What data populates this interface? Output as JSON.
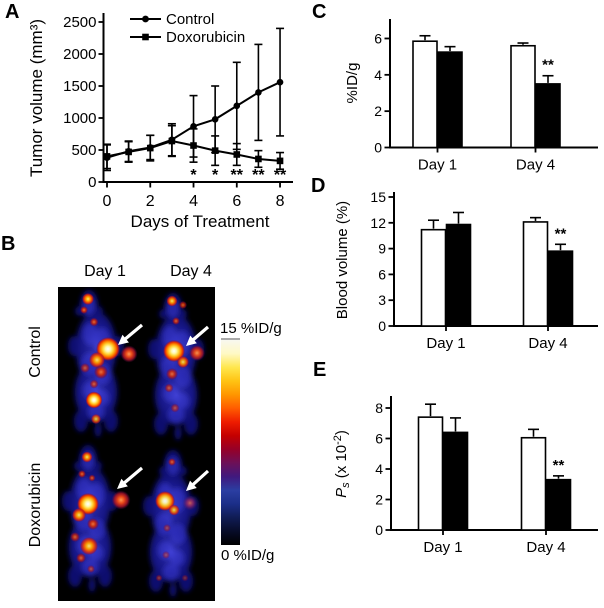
{
  "figure": {
    "background": "#ffffff",
    "text_color": "#000000"
  },
  "panels": {
    "a": {
      "letter": "A"
    },
    "b": {
      "letter": "B",
      "column_labels": [
        "Day 1",
        "Day 4"
      ],
      "row_labels": [
        "Control",
        "Doxorubicin"
      ],
      "colorbar": {
        "max_label": "15 %ID/g",
        "min_label": "0 %ID/g",
        "colors": [
          "#f8f8f0",
          "#fff9c4",
          "#ffe74e",
          "#ffc313",
          "#ff9600",
          "#ff5c00",
          "#ee1c00",
          "#c40000",
          "#960028",
          "#6c1058",
          "#40197e",
          "#2b3ea2",
          "#1b2e88",
          "#101c54",
          "#070c28",
          "#000000"
        ]
      }
    },
    "c": {
      "letter": "C"
    },
    "d": {
      "letter": "D"
    },
    "e": {
      "letter": "E"
    }
  },
  "chart_data": [
    {
      "id": "a",
      "type": "line",
      "title": "",
      "xlabel": "Days of Treatment",
      "ylabel": "Tumor volume (mm³)",
      "x": [
        0,
        1,
        2,
        3,
        4,
        5,
        6,
        7,
        8
      ],
      "xticks": [
        0,
        2,
        4,
        6,
        8
      ],
      "yticks": [
        0,
        500,
        1000,
        1500,
        2000,
        2500
      ],
      "xlim": [
        0,
        8
      ],
      "ylim": [
        0,
        2500
      ],
      "legend_position": "top-inside",
      "series": [
        {
          "name": "Control",
          "marker": "circle",
          "values": [
            380,
            480,
            540,
            660,
            870,
            980,
            1190,
            1400,
            1560
          ],
          "errors": [
            200,
            160,
            190,
            250,
            480,
            520,
            680,
            750,
            840
          ]
        },
        {
          "name": "Doxorubicin",
          "marker": "square",
          "values": [
            400,
            470,
            530,
            640,
            570,
            490,
            430,
            360,
            330
          ],
          "errors": [
            190,
            160,
            200,
            240,
            260,
            230,
            170,
            130,
            130
          ]
        }
      ],
      "annotations": [
        {
          "x": 4,
          "text": "*"
        },
        {
          "x": 5,
          "text": "*"
        },
        {
          "x": 6,
          "text": "**"
        },
        {
          "x": 7,
          "text": "**"
        },
        {
          "x": 8,
          "text": "**"
        }
      ]
    },
    {
      "id": "c",
      "type": "bar",
      "ylabel": "%ID/g",
      "categories": [
        "Day 1",
        "Day 4"
      ],
      "yticks": [
        0,
        2,
        4,
        6
      ],
      "ylim": [
        0,
        6.9
      ],
      "series": [
        {
          "name": "open-bar",
          "fill": "#ffffff",
          "values": [
            5.85,
            5.6
          ],
          "errors": [
            0.3,
            0.15
          ]
        },
        {
          "name": "filled-bar",
          "fill": "#000000",
          "values": [
            5.25,
            3.5
          ],
          "errors": [
            0.3,
            0.45
          ]
        }
      ],
      "annotations": [
        {
          "category": "Day 4",
          "series": 1,
          "text": "**"
        }
      ]
    },
    {
      "id": "d",
      "type": "bar",
      "ylabel": "Blood volume (%)",
      "categories": [
        "Day 1",
        "Day 4"
      ],
      "yticks": [
        0,
        3,
        6,
        9,
        12,
        15
      ],
      "ylim": [
        0,
        15.5
      ],
      "series": [
        {
          "name": "open-bar",
          "fill": "#ffffff",
          "values": [
            11.2,
            12.1
          ],
          "errors": [
            1.1,
            0.5
          ]
        },
        {
          "name": "filled-bar",
          "fill": "#000000",
          "values": [
            11.8,
            8.7
          ],
          "errors": [
            1.4,
            0.8
          ]
        }
      ],
      "annotations": [
        {
          "category": "Day 4",
          "series": 1,
          "text": "**"
        }
      ]
    },
    {
      "id": "e",
      "type": "bar",
      "ylabel": "Ps (x 10-2)",
      "ylabel_parts": [
        {
          "t": "P",
          "i": true
        },
        {
          "t": "s",
          "dy": 3,
          "fs": 11,
          "i": true
        },
        {
          "t": " (x 10",
          "dy": -3
        },
        {
          "t": "-2",
          "dy": -5,
          "fs": 11
        },
        {
          "t": ")",
          "dy": 5
        }
      ],
      "categories": [
        "Day 1",
        "Day 4"
      ],
      "yticks": [
        0,
        2,
        4,
        6,
        8
      ],
      "ylim": [
        0,
        8.8
      ],
      "series": [
        {
          "name": "open-bar",
          "fill": "#ffffff",
          "values": [
            7.4,
            6.05
          ],
          "errors": [
            0.85,
            0.55
          ]
        },
        {
          "name": "filled-bar",
          "fill": "#000000",
          "values": [
            6.4,
            3.3
          ],
          "errors": [
            0.95,
            0.25
          ]
        }
      ],
      "annotations": [
        {
          "category": "Day 4",
          "series": 1,
          "text": "**"
        }
      ]
    }
  ]
}
